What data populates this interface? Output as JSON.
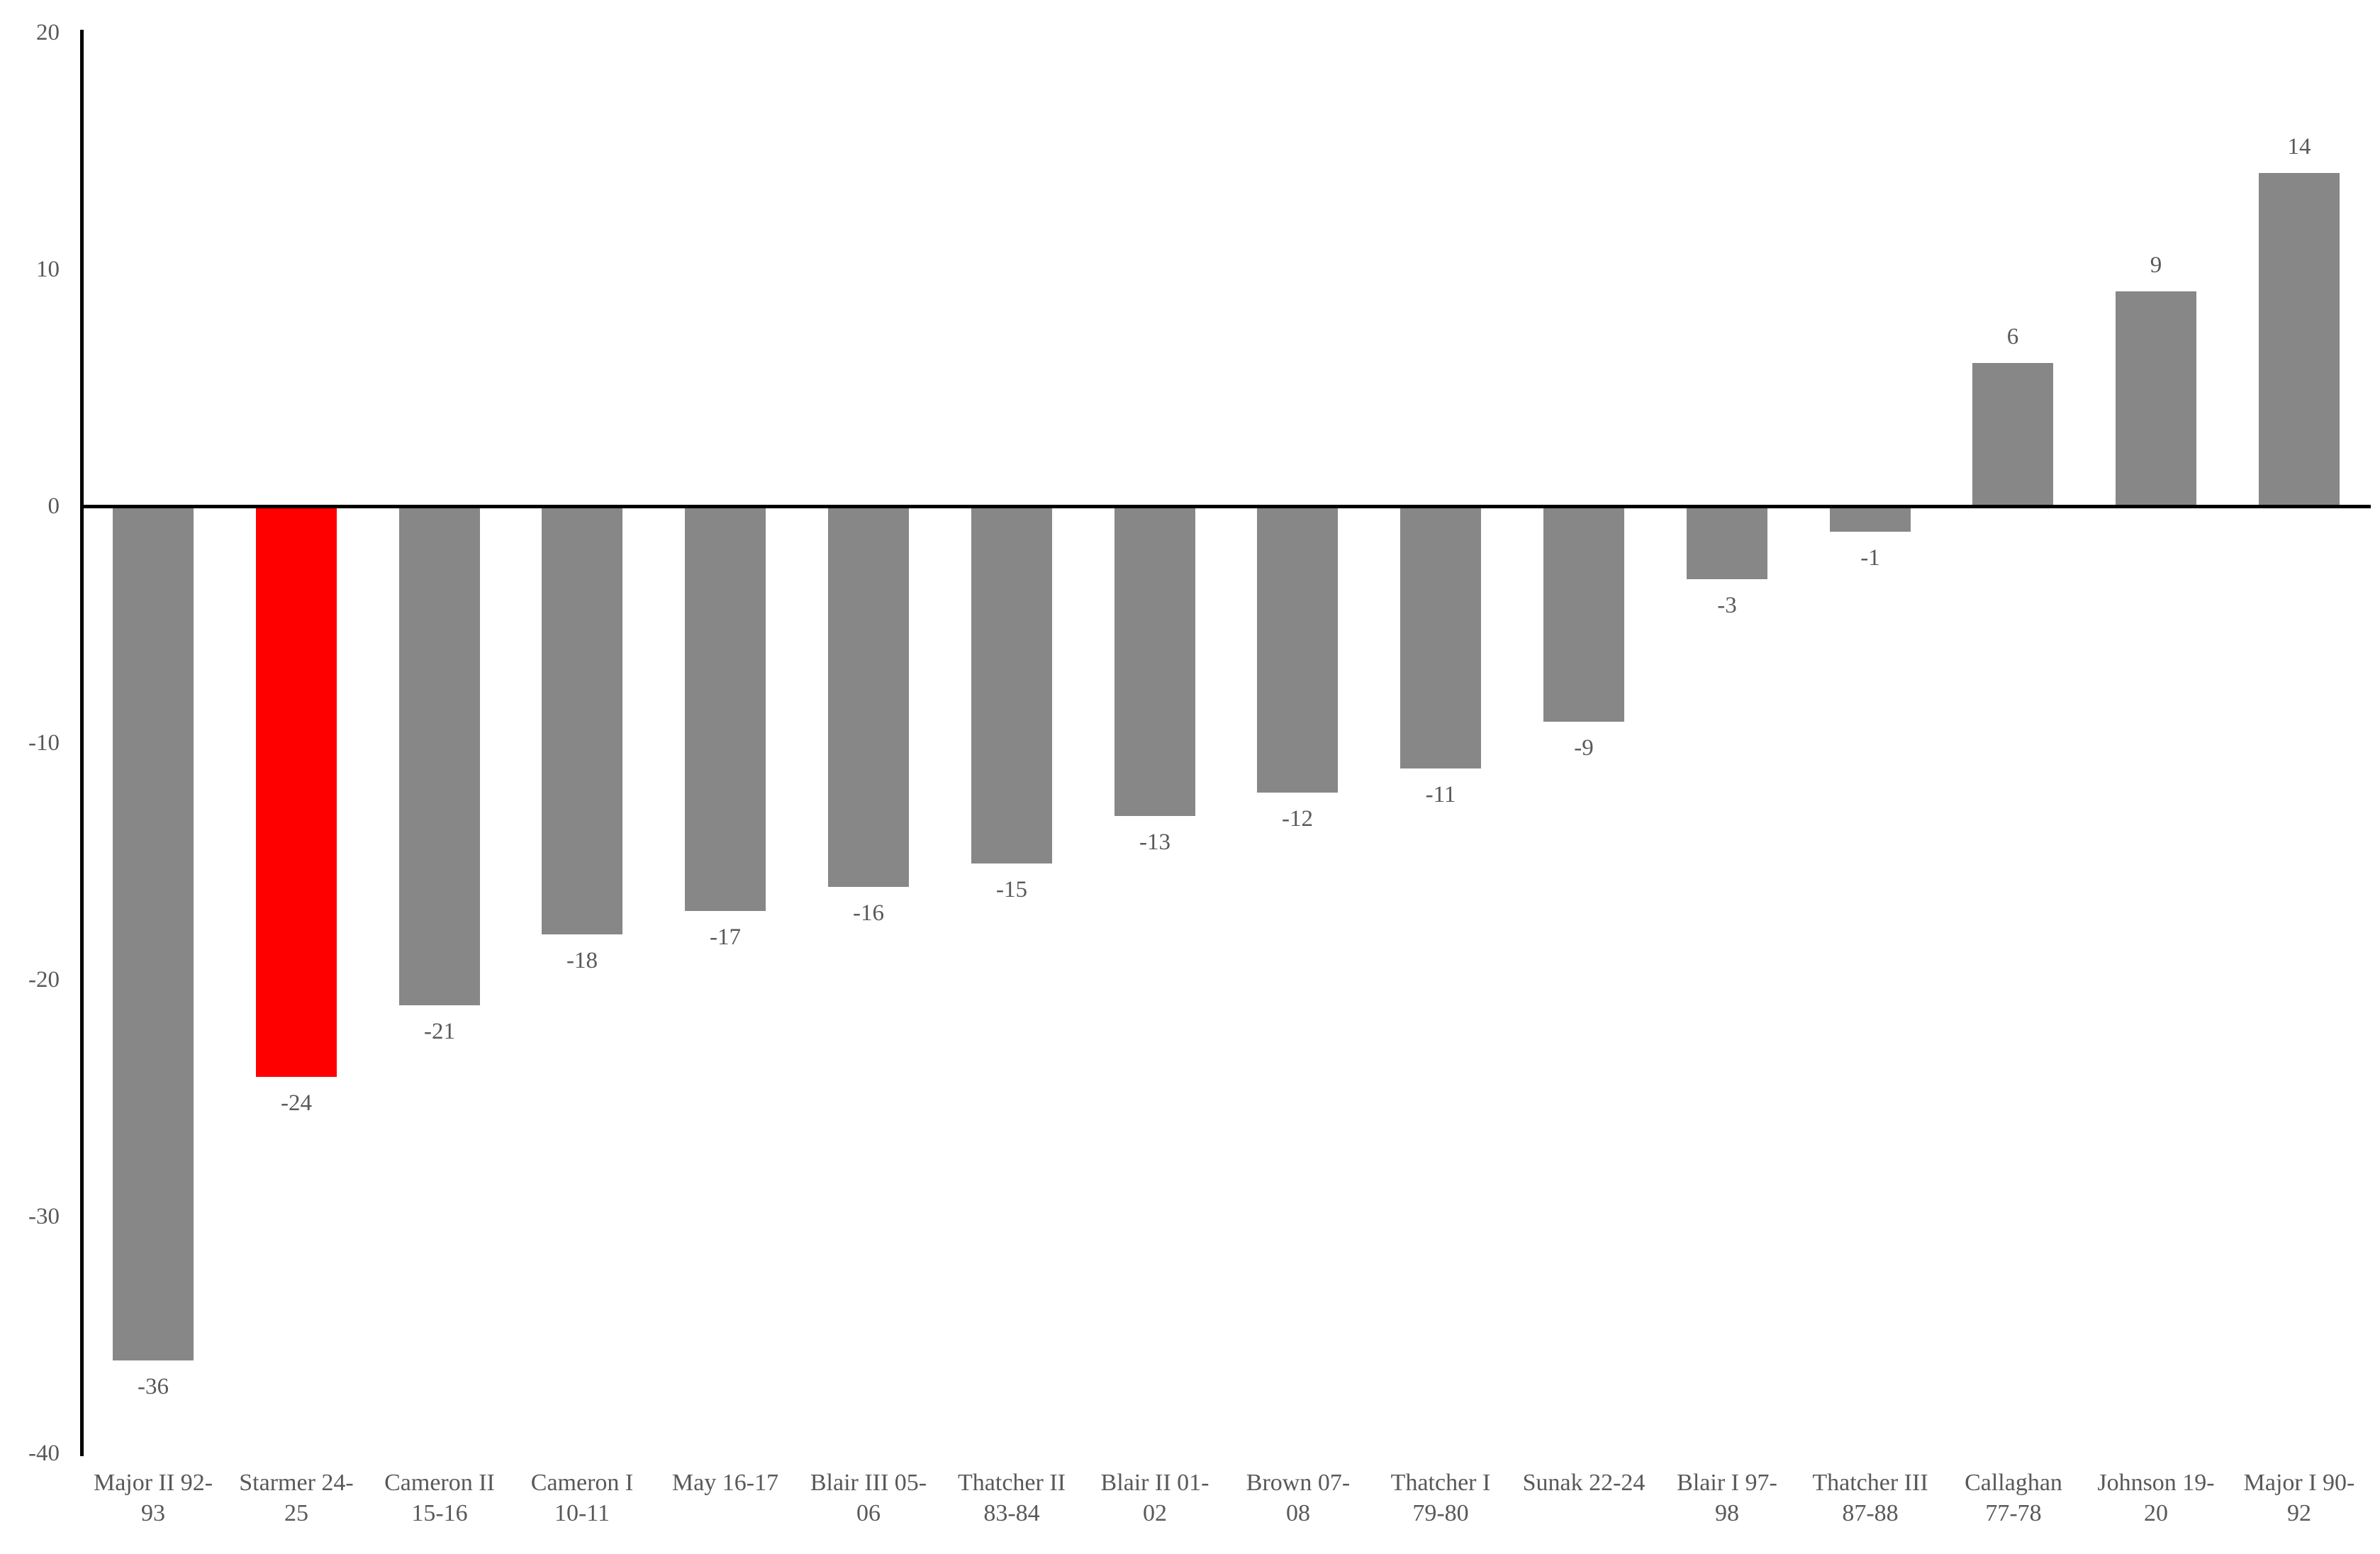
{
  "chart_data": {
    "type": "bar",
    "title": "",
    "xlabel": "",
    "ylabel": "",
    "grid": false,
    "legend": "none",
    "ylim": [
      -40,
      20
    ],
    "yticks": [
      20,
      10,
      0,
      -10,
      -20,
      -30,
      -40
    ],
    "categories": [
      "Major II 92-93",
      "Starmer 24-25",
      "Cameron II 15-16",
      "Cameron I 10-11",
      "May 16-17",
      "Blair III 05-06",
      "Thatcher II 83-84",
      "Blair II 01-02",
      "Brown 07-08",
      "Thatcher I 79-80",
      "Sunak 22-24",
      "Blair I 97-98",
      "Thatcher III 87-88",
      "Callaghan 77-78",
      "Johnson 19-20",
      "Major I 90-92"
    ],
    "category_lines": [
      [
        "Major II 92-",
        "93"
      ],
      [
        "Starmer 24-",
        "25"
      ],
      [
        "Cameron II",
        "15-16"
      ],
      [
        "Cameron I",
        "10-11"
      ],
      [
        "May 16-17"
      ],
      [
        "Blair III 05-",
        "06"
      ],
      [
        "Thatcher II",
        "83-84"
      ],
      [
        "Blair II 01-",
        "02"
      ],
      [
        "Brown 07-",
        "08"
      ],
      [
        "Thatcher I",
        "79-80"
      ],
      [
        "Sunak 22-24"
      ],
      [
        "Blair I 97-",
        "98"
      ],
      [
        "Thatcher III",
        "87-88"
      ],
      [
        "Callaghan",
        "77-78"
      ],
      [
        "Johnson 19-",
        "20"
      ],
      [
        "Major I 90-",
        "92"
      ]
    ],
    "values": [
      -36,
      -24,
      -21,
      -18,
      -17,
      -16,
      -15,
      -13,
      -12,
      -11,
      -9,
      -3,
      -1,
      6,
      9,
      14
    ],
    "data_labels": [
      "-36",
      "-24",
      "-21",
      "-18",
      "-17",
      "-16",
      "-15",
      "-13",
      "-12",
      "-11",
      "-9",
      "-3",
      "-1",
      "6",
      "9",
      "14"
    ],
    "highlight_index": 1,
    "colors": {
      "bar": "#878787",
      "highlight": "#FF0000",
      "text": "#595959",
      "axis": "#000000",
      "background": "#FFFFFF"
    }
  }
}
